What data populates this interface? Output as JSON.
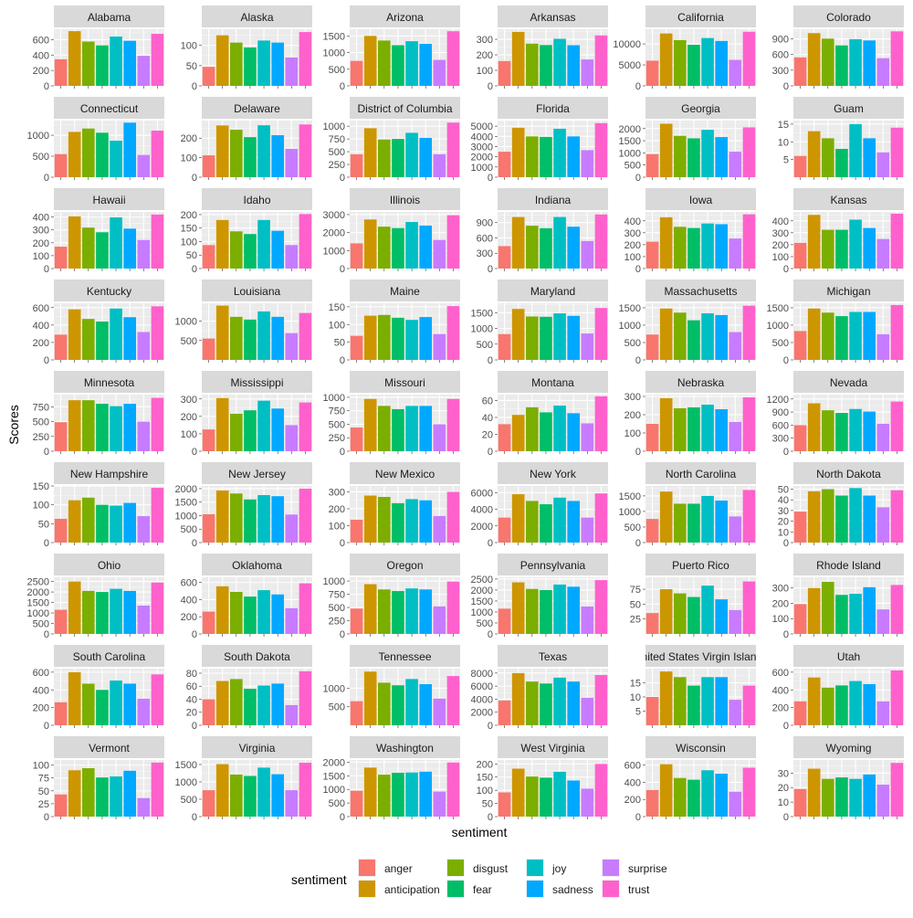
{
  "chart_data": {
    "type": "bar",
    "layout": "facet_wrap",
    "xlabel": "sentiment",
    "ylabel": "Scores",
    "legend": {
      "title": "sentiment",
      "position": "bottom"
    },
    "categories": [
      "anger",
      "anticipation",
      "disgust",
      "fear",
      "joy",
      "sadness",
      "surprise",
      "trust"
    ],
    "colors": [
      "#F8766D",
      "#CD9600",
      "#7CAE00",
      "#00BE67",
      "#00BFC4",
      "#00A9FF",
      "#C77CFF",
      "#FF61CC"
    ],
    "grid": true,
    "facets": [
      {
        "name": "Alabama",
        "ticks": [
          0,
          200,
          400,
          600
        ],
        "ylim": [
          0,
          735
        ],
        "values": [
          345,
          710,
          575,
          525,
          640,
          585,
          390,
          675
        ]
      },
      {
        "name": "Alaska",
        "ticks": [
          0,
          50,
          100
        ],
        "ylim": [
          0,
          140
        ],
        "values": [
          47,
          125,
          107,
          95,
          112,
          107,
          70,
          133
        ]
      },
      {
        "name": "Arizona",
        "ticks": [
          0,
          500,
          1000,
          1500
        ],
        "ylim": [
          0,
          1700
        ],
        "values": [
          750,
          1500,
          1360,
          1220,
          1340,
          1260,
          780,
          1640
        ]
      },
      {
        "name": "Arkansas",
        "ticks": [
          0,
          100,
          200,
          300
        ],
        "ylim": [
          0,
          365
        ],
        "values": [
          160,
          348,
          272,
          263,
          303,
          262,
          170,
          325
        ]
      },
      {
        "name": "California",
        "ticks": [
          0,
          5000,
          10000
        ],
        "ylim": [
          0,
          13500
        ],
        "values": [
          6000,
          12500,
          10900,
          9800,
          11400,
          10700,
          6200,
          12900
        ]
      },
      {
        "name": "Colorado",
        "ticks": [
          0,
          300,
          600,
          900
        ],
        "ylim": [
          0,
          1085
        ],
        "values": [
          545,
          1010,
          905,
          775,
          895,
          870,
          530,
          1045
        ]
      },
      {
        "name": "Connecticut",
        "ticks": [
          0,
          500,
          1000
        ],
        "ylim": [
          0,
          1350
        ],
        "values": [
          550,
          1080,
          1160,
          1060,
          870,
          1300,
          530,
          1110
        ]
      },
      {
        "name": "Delaware",
        "ticks": [
          0,
          100,
          200
        ],
        "ylim": [
          0,
          290
        ],
        "values": [
          112,
          265,
          243,
          205,
          266,
          215,
          145,
          270
        ]
      },
      {
        "name": "District of Columbia",
        "ticks": [
          0,
          250,
          500,
          750,
          1000
        ],
        "ylim": [
          0,
          1110
        ],
        "values": [
          450,
          960,
          740,
          750,
          870,
          770,
          450,
          1070
        ]
      },
      {
        "name": "Florida",
        "ticks": [
          0,
          1000,
          2000,
          3000,
          4000,
          5000
        ],
        "ylim": [
          0,
          5550
        ],
        "values": [
          2500,
          4850,
          4000,
          3950,
          4750,
          4000,
          2650,
          5300
        ]
      },
      {
        "name": "Georgia",
        "ticks": [
          0,
          500,
          1000,
          1500,
          2000
        ],
        "ylim": [
          0,
          2330
        ],
        "values": [
          950,
          2200,
          1700,
          1600,
          1950,
          1650,
          1050,
          2050
        ]
      },
      {
        "name": "Guam",
        "ticks": [
          5,
          10,
          15
        ],
        "ylim": [
          0,
          16
        ],
        "values": [
          6,
          13,
          11,
          8,
          15,
          11,
          7,
          14
        ]
      },
      {
        "name": "Hawaii",
        "ticks": [
          0,
          100,
          200,
          300,
          400
        ],
        "ylim": [
          0,
          440
        ],
        "values": [
          170,
          405,
          318,
          282,
          398,
          310,
          222,
          420
        ]
      },
      {
        "name": "Idaho",
        "ticks": [
          0,
          50,
          100,
          150,
          200
        ],
        "ylim": [
          0,
          210
        ],
        "values": [
          87,
          180,
          138,
          128,
          180,
          140,
          87,
          202
        ]
      },
      {
        "name": "Illinois",
        "ticks": [
          0,
          1000,
          2000,
          3000
        ],
        "ylim": [
          0,
          3150
        ],
        "values": [
          1400,
          2730,
          2330,
          2250,
          2590,
          2390,
          1590,
          2970
        ]
      },
      {
        "name": "Indiana",
        "ticks": [
          0,
          300,
          600,
          900
        ],
        "ylim": [
          0,
          1110
        ],
        "values": [
          440,
          1010,
          840,
          790,
          1010,
          820,
          540,
          1060
        ]
      },
      {
        "name": "Iowa",
        "ticks": [
          0,
          100,
          200,
          300,
          400
        ],
        "ylim": [
          0,
          475
        ],
        "values": [
          225,
          430,
          350,
          340,
          378,
          372,
          252,
          455
        ]
      },
      {
        "name": "Kansas",
        "ticks": [
          0,
          100,
          200,
          300,
          400
        ],
        "ylim": [
          0,
          475
        ],
        "values": [
          215,
          450,
          325,
          325,
          410,
          340,
          248,
          460
        ]
      },
      {
        "name": "Kentucky",
        "ticks": [
          0,
          200,
          400,
          600
        ],
        "ylim": [
          0,
          650
        ],
        "values": [
          290,
          580,
          470,
          440,
          590,
          490,
          320,
          615
        ]
      },
      {
        "name": "Louisiana",
        "ticks": [
          500,
          1000
        ],
        "ylim": [
          0,
          1460
        ],
        "values": [
          550,
          1400,
          1110,
          1040,
          1250,
          1110,
          690,
          1210
        ]
      },
      {
        "name": "Maine",
        "ticks": [
          0,
          50,
          100,
          150
        ],
        "ylim": [
          0,
          160
        ],
        "values": [
          68,
          125,
          127,
          119,
          113,
          121,
          73,
          152
        ]
      },
      {
        "name": "Maryland",
        "ticks": [
          0,
          500,
          1000,
          1500
        ],
        "ylim": [
          0,
          1800
        ],
        "values": [
          820,
          1620,
          1380,
          1370,
          1480,
          1400,
          840,
          1650
        ]
      },
      {
        "name": "Massachusetts",
        "ticks": [
          0,
          500,
          1000,
          1500
        ],
        "ylim": [
          0,
          1630
        ],
        "values": [
          730,
          1480,
          1360,
          1140,
          1340,
          1290,
          800,
          1560
        ]
      },
      {
        "name": "Michigan",
        "ticks": [
          0,
          500,
          1000,
          1500
        ],
        "ylim": [
          0,
          1630
        ],
        "values": [
          830,
          1480,
          1360,
          1260,
          1380,
          1380,
          740,
          1580
        ]
      },
      {
        "name": "Minnesota",
        "ticks": [
          0,
          250,
          500,
          750
        ],
        "ylim": [
          0,
          955
        ],
        "values": [
          490,
          860,
          860,
          800,
          760,
          800,
          500,
          900
        ]
      },
      {
        "name": "Mississippi",
        "ticks": [
          0,
          100,
          200,
          300
        ],
        "ylim": [
          0,
          325
        ],
        "values": [
          125,
          305,
          215,
          235,
          290,
          245,
          150,
          280
        ]
      },
      {
        "name": "Missouri",
        "ticks": [
          0,
          250,
          500,
          750,
          1000
        ],
        "ylim": [
          0,
          1050
        ],
        "values": [
          440,
          970,
          840,
          780,
          840,
          840,
          500,
          970
        ]
      },
      {
        "name": "Montana",
        "ticks": [
          0,
          20,
          40,
          60
        ],
        "ylim": [
          0,
          67
        ],
        "values": [
          32,
          43,
          52,
          46,
          54,
          45,
          33,
          65
        ]
      },
      {
        "name": "Nebraska",
        "ticks": [
          0,
          100,
          200,
          300
        ],
        "ylim": [
          0,
          310
        ],
        "values": [
          150,
          290,
          235,
          240,
          255,
          230,
          160,
          295
        ]
      },
      {
        "name": "Nevada",
        "ticks": [
          0,
          300,
          600,
          900,
          1200
        ],
        "ylim": [
          0,
          1300
        ],
        "values": [
          600,
          1100,
          940,
          880,
          970,
          910,
          630,
          1140
        ]
      },
      {
        "name": "New Hampshire",
        "ticks": [
          0,
          50,
          100,
          150
        ],
        "ylim": [
          0,
          150
        ],
        "values": [
          63,
          112,
          119,
          100,
          98,
          105,
          70,
          145
        ]
      },
      {
        "name": "New Jersey",
        "ticks": [
          0,
          500,
          1000,
          1500,
          2000
        ],
        "ylim": [
          0,
          2100
        ],
        "values": [
          1050,
          1930,
          1820,
          1600,
          1760,
          1720,
          1040,
          2000
        ]
      },
      {
        "name": "New Mexico",
        "ticks": [
          0,
          100,
          200,
          300
        ],
        "ylim": [
          0,
          335
        ],
        "values": [
          135,
          278,
          270,
          233,
          257,
          250,
          157,
          300
        ]
      },
      {
        "name": "New York",
        "ticks": [
          0,
          2000,
          4000,
          6000
        ],
        "ylim": [
          0,
          6800
        ],
        "values": [
          3000,
          5800,
          5000,
          4600,
          5400,
          5000,
          3000,
          5900
        ]
      },
      {
        "name": "North Carolina",
        "ticks": [
          0,
          500,
          1000,
          1500
        ],
        "ylim": [
          0,
          1820
        ],
        "values": [
          760,
          1640,
          1250,
          1250,
          1500,
          1350,
          840,
          1690
        ]
      },
      {
        "name": "North Dakota",
        "ticks": [
          0,
          10,
          20,
          30,
          40,
          50
        ],
        "ylim": [
          0,
          53
        ],
        "values": [
          29,
          48,
          50,
          44,
          51,
          44,
          33,
          49
        ]
      },
      {
        "name": "Ohio",
        "ticks": [
          0,
          500,
          1000,
          1500,
          2000,
          2500
        ],
        "ylim": [
          0,
          2700
        ],
        "values": [
          1150,
          2500,
          2050,
          2000,
          2150,
          2050,
          1350,
          2450
        ]
      },
      {
        "name": "Oklahoma",
        "ticks": [
          0,
          200,
          400,
          600
        ],
        "ylim": [
          0,
          660
        ],
        "values": [
          260,
          555,
          490,
          435,
          510,
          460,
          300,
          590
        ]
      },
      {
        "name": "Oregon",
        "ticks": [
          0,
          250,
          500,
          750,
          1000
        ],
        "ylim": [
          0,
          1070
        ],
        "values": [
          480,
          940,
          840,
          810,
          860,
          840,
          520,
          990
        ]
      },
      {
        "name": "Pennsylvania",
        "ticks": [
          0,
          500,
          1000,
          1500,
          2000,
          2500
        ],
        "ylim": [
          0,
          2580
        ],
        "values": [
          1150,
          2350,
          2050,
          2000,
          2250,
          2150,
          1250,
          2450
        ]
      },
      {
        "name": "Puerto Rico",
        "ticks": [
          25,
          50,
          75
        ],
        "ylim": [
          0,
          95
        ],
        "values": [
          35,
          75,
          68,
          62,
          81,
          58,
          40,
          88
        ]
      },
      {
        "name": "Rhode Island",
        "ticks": [
          0,
          100,
          200,
          300
        ],
        "ylim": [
          0,
          370
        ],
        "values": [
          195,
          300,
          340,
          255,
          262,
          305,
          160,
          320
        ]
      },
      {
        "name": "South Carolina",
        "ticks": [
          0,
          200,
          400,
          600
        ],
        "ylim": [
          0,
          640
        ],
        "values": [
          260,
          600,
          470,
          400,
          505,
          470,
          300,
          575
        ]
      },
      {
        "name": "South Dakota",
        "ticks": [
          0,
          20,
          40,
          60,
          80
        ],
        "ylim": [
          0,
          87
        ],
        "values": [
          40,
          68,
          71,
          56,
          61,
          64,
          31,
          83
        ]
      },
      {
        "name": "Tennessee",
        "ticks": [
          500,
          1000
        ],
        "ylim": [
          0,
          1530
        ],
        "values": [
          650,
          1450,
          1150,
          1080,
          1250,
          1110,
          720,
          1330
        ]
      },
      {
        "name": "Texas",
        "ticks": [
          0,
          2000,
          4000,
          6000,
          8000
        ],
        "ylim": [
          0,
          8680
        ],
        "values": [
          3800,
          8000,
          6700,
          6400,
          7300,
          6700,
          4200,
          7700
        ]
      },
      {
        "name": "United States Virgin Islands",
        "ticks": [
          5,
          10,
          15
        ],
        "ylim": [
          0,
          20
        ],
        "values": [
          10,
          19,
          17,
          14,
          17,
          17,
          9,
          14
        ]
      },
      {
        "name": "Utah",
        "ticks": [
          0,
          200,
          400,
          600
        ],
        "ylim": [
          0,
          640
        ],
        "values": [
          270,
          540,
          425,
          450,
          500,
          465,
          270,
          620
        ]
      },
      {
        "name": "Vermont",
        "ticks": [
          0,
          25,
          50,
          75,
          100
        ],
        "ylim": [
          0,
          110
        ],
        "values": [
          43,
          90,
          94,
          76,
          78,
          89,
          36,
          105
        ]
      },
      {
        "name": "Virginia",
        "ticks": [
          0,
          500,
          1000,
          1500
        ],
        "ylim": [
          0,
          1630
        ],
        "values": [
          760,
          1510,
          1210,
          1170,
          1410,
          1220,
          760,
          1550
        ]
      },
      {
        "name": "Washington",
        "ticks": [
          0,
          500,
          1000,
          1500,
          2000
        ],
        "ylim": [
          0,
          2080
        ],
        "values": [
          950,
          1800,
          1540,
          1610,
          1620,
          1650,
          920,
          1990
        ]
      },
      {
        "name": "West Virginia",
        "ticks": [
          0,
          50,
          100,
          150,
          200
        ],
        "ylim": [
          0,
          215
        ],
        "values": [
          92,
          182,
          152,
          148,
          170,
          137,
          106,
          200
        ]
      },
      {
        "name": "Wisconsin",
        "ticks": [
          0,
          200,
          400,
          600
        ],
        "ylim": [
          0,
          660
        ],
        "values": [
          310,
          610,
          450,
          430,
          540,
          500,
          290,
          570
        ]
      },
      {
        "name": "Wyoming",
        "ticks": [
          0,
          10,
          20,
          30
        ],
        "ylim": [
          0,
          39
        ],
        "values": [
          19,
          33,
          26,
          27,
          26,
          29,
          22,
          37
        ]
      }
    ]
  }
}
